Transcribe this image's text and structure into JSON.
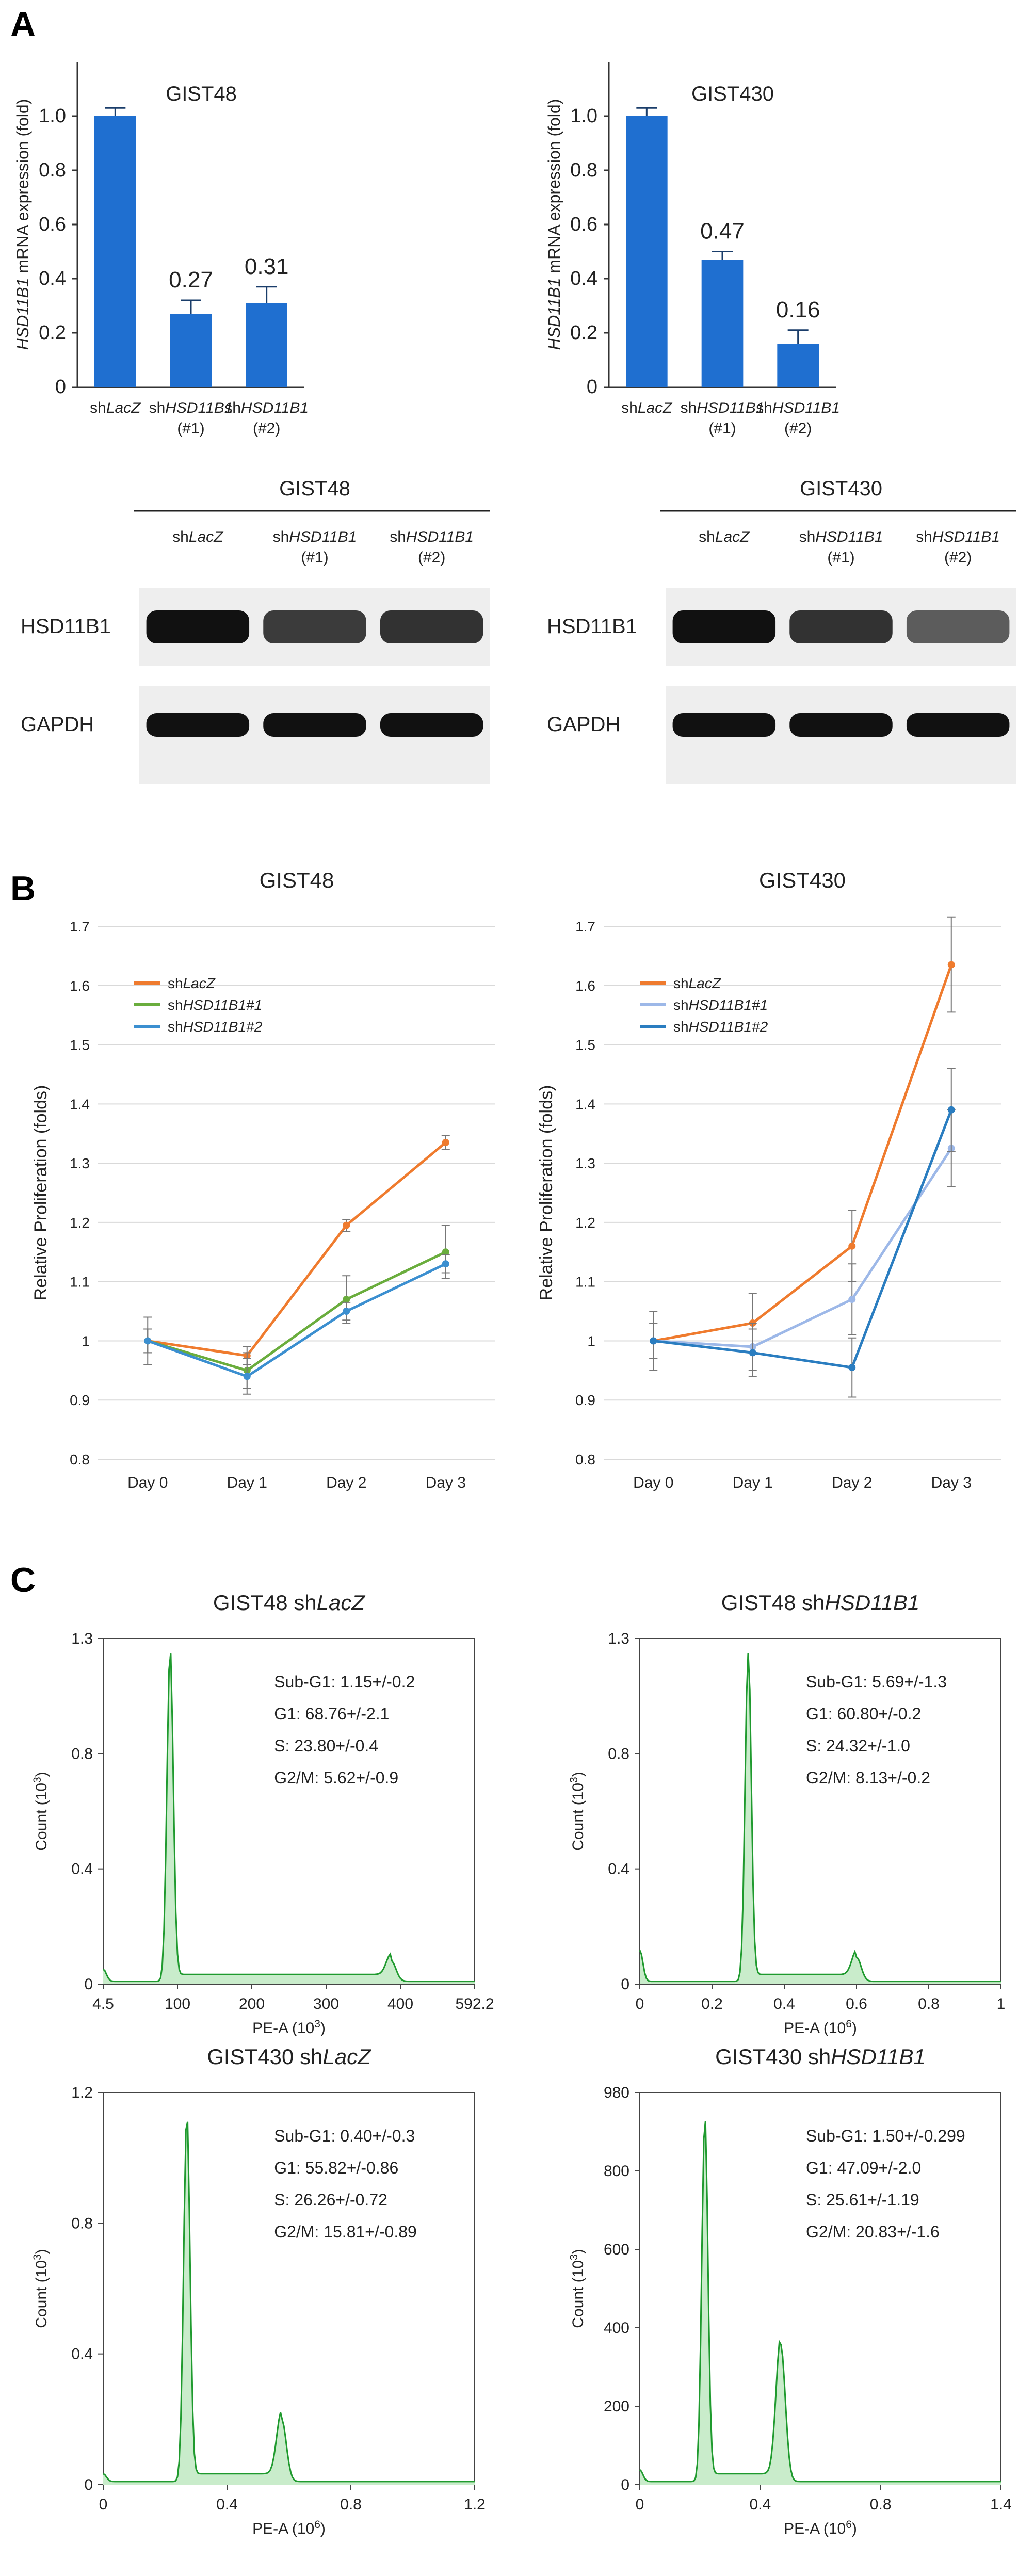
{
  "panels": {
    "A": "A",
    "B": "B",
    "C": "C"
  },
  "colors": {
    "bar": "#1f6fd0",
    "lacz": "#ef7b2e",
    "green": "#6aad3d",
    "blue": "#3b8fd0",
    "lightblue": "#9db8e8",
    "darkblue": "#2a7dc0",
    "flow": "#1f9a2e",
    "flowfill": "#c9eccb"
  },
  "bar_charts": [
    {
      "type": "bar",
      "title": "GIST48",
      "ylabel_gene": "HSD11B1",
      "ylabel_rest": " mRNA expression (fold)",
      "yticks": [
        "0",
        "0.2",
        "0.4",
        "0.6",
        "0.8",
        "1.0"
      ],
      "ylim": [
        0,
        1.2
      ],
      "categories": [
        [
          "sh",
          "LacZ",
          ""
        ],
        [
          "sh",
          "HSD11B1",
          "(#1)"
        ],
        [
          "sh",
          "HSD11B1",
          "(#2)"
        ]
      ],
      "values": [
        1.0,
        0.27,
        0.31
      ],
      "errors": [
        0.03,
        0.05,
        0.06
      ],
      "labels": [
        "",
        "0.27",
        "0.31"
      ]
    },
    {
      "type": "bar",
      "title": "GIST430",
      "ylabel_gene": "HSD11B1",
      "ylabel_rest": " mRNA expression (fold)",
      "yticks": [
        "0",
        "0.2",
        "0.4",
        "0.6",
        "0.8",
        "1.0"
      ],
      "ylim": [
        0,
        1.2
      ],
      "categories": [
        [
          "sh",
          "LacZ",
          ""
        ],
        [
          "sh",
          "HSD11B1",
          "(#1)"
        ],
        [
          "sh",
          "HSD11B1",
          "(#2)"
        ]
      ],
      "values": [
        1.0,
        0.47,
        0.16
      ],
      "errors": [
        0.03,
        0.03,
        0.05
      ],
      "labels": [
        "",
        "0.47",
        "0.16"
      ]
    }
  ],
  "blots": [
    {
      "title": "GIST48",
      "lanes": [
        [
          "sh",
          "LacZ",
          ""
        ],
        [
          "sh",
          "HSD11B1",
          "(#1)"
        ],
        [
          "sh",
          "HSD11B1",
          "(#2)"
        ]
      ],
      "rows": [
        "HSD11B1",
        "GAPDH"
      ],
      "band_intensity": [
        [
          1.0,
          0.75,
          0.8
        ],
        [
          1.0,
          1.0,
          1.0
        ]
      ]
    },
    {
      "title": "GIST430",
      "lanes": [
        [
          "sh",
          "LacZ",
          ""
        ],
        [
          "sh",
          "HSD11B1",
          "(#1)"
        ],
        [
          "sh",
          "HSD11B1",
          "(#2)"
        ]
      ],
      "rows": [
        "HSD11B1",
        "GAPDH"
      ],
      "band_intensity": [
        [
          1.0,
          0.8,
          0.55
        ],
        [
          1.0,
          1.0,
          1.0
        ]
      ]
    }
  ],
  "line_charts": [
    {
      "type": "line",
      "title": "GIST48",
      "ylabel": "Relative Proliferation (folds)",
      "x": [
        "Day 0",
        "Day 1",
        "Day 2",
        "Day 3"
      ],
      "yticks": [
        "0.8",
        "0.9",
        "1",
        "1.1",
        "1.2",
        "1.3",
        "1.4",
        "1.5",
        "1.6",
        "1.7"
      ],
      "ylim": [
        0.8,
        1.7
      ],
      "series": [
        {
          "name_pre": "sh",
          "name_it": "LacZ",
          "color": "#ef7b2e",
          "values": [
            1.0,
            0.975,
            1.195,
            1.335
          ],
          "errors": [
            0.04,
            0.015,
            0.01,
            0.012
          ]
        },
        {
          "name_pre": "sh",
          "name_it": "HSD11B1#1",
          "color": "#6aad3d",
          "values": [
            1.0,
            0.95,
            1.07,
            1.15
          ],
          "errors": [
            0.02,
            0.03,
            0.04,
            0.045
          ]
        },
        {
          "name_pre": "sh",
          "name_it": "HSD11B1#2",
          "color": "#3b8fd0",
          "values": [
            1.0,
            0.94,
            1.05,
            1.13
          ],
          "errors": [
            0.02,
            0.03,
            0.015,
            0.015
          ]
        }
      ]
    },
    {
      "type": "line",
      "title": "GIST430",
      "ylabel": "Relative Proliferation (folds)",
      "x": [
        "Day 0",
        "Day 1",
        "Day 2",
        "Day 3"
      ],
      "yticks": [
        "0.8",
        "0.9",
        "1",
        "1.1",
        "1.2",
        "1.3",
        "1.4",
        "1.5",
        "1.6",
        "1.7"
      ],
      "ylim": [
        0.8,
        1.7
      ],
      "series": [
        {
          "name_pre": "sh",
          "name_it": "LacZ",
          "color": "#ef7b2e",
          "values": [
            1.0,
            1.03,
            1.16,
            1.635
          ],
          "errors": [
            0.05,
            0.05,
            0.06,
            0.08
          ]
        },
        {
          "name_pre": "sh",
          "name_it": "HSD11B1#1",
          "color": "#9db8e8",
          "values": [
            1.0,
            0.99,
            1.07,
            1.325
          ],
          "errors": [
            0.03,
            0.04,
            0.06,
            0.065
          ]
        },
        {
          "name_pre": "sh",
          "name_it": "HSD11B1#2",
          "color": "#2a7dc0",
          "values": [
            1.0,
            0.98,
            0.955,
            1.39
          ],
          "errors": [
            0.03,
            0.04,
            0.05,
            0.07
          ]
        }
      ]
    }
  ],
  "flow_charts": [
    {
      "title_pre": "GIST48 sh",
      "title_it": "LacZ",
      "ylabel": "Count",
      "yunit_base": "(10",
      "yunit_exp": "3",
      "yunit_close": ")",
      "xlabel": "PE-A",
      "xunit_base": "(10",
      "xunit_exp": "3",
      "xunit_close": ")",
      "xticks": [
        "4.5",
        "100",
        "200",
        "300",
        "400",
        "592.2"
      ],
      "yticks": [
        "0",
        "0.4",
        "0.8",
        "1.3"
      ],
      "stats": [
        "Sub-G1: 1.15+/-0.2",
        "G1: 68.76+/-2.1",
        "S: 23.80+/-0.4",
        "G2/M: 5.62+/-0.9"
      ],
      "peaks": [
        [
          0.18,
          0.95
        ],
        [
          0.775,
          0.06
        ]
      ],
      "subg1": 0.035
    },
    {
      "title_pre": "GIST48 sh",
      "title_it": "HSD11B1",
      "ylabel": "Count",
      "yunit_base": "(10",
      "yunit_exp": "3",
      "yunit_close": ")",
      "xlabel": "PE-A",
      "xunit_base": "(10",
      "xunit_exp": "6",
      "xunit_close": ")",
      "xticks": [
        "0",
        "0.2",
        "0.4",
        "0.6",
        "0.8",
        "1"
      ],
      "yticks": [
        "0",
        "0.4",
        "0.8",
        "1.3"
      ],
      "stats": [
        "Sub-G1: 5.69+/-1.3",
        "G1: 60.80+/-0.2",
        "S: 24.32+/-1.0",
        "G2/M: 8.13+/-0.2"
      ],
      "peaks": [
        [
          0.3,
          0.95
        ],
        [
          0.6,
          0.07
        ]
      ],
      "subg1": 0.09
    },
    {
      "title_pre": "GIST430 sh",
      "title_it": "LacZ",
      "ylabel": "Count",
      "yunit_base": "(10",
      "yunit_exp": "3",
      "yunit_close": ")",
      "xlabel": "PE-A",
      "xunit_base": "(10",
      "xunit_exp": "6",
      "xunit_close": ")",
      "xticks": [
        "0",
        "0.4",
        "0.8",
        "1.2"
      ],
      "yticks": [
        "0",
        "0.4",
        "0.8",
        "1.2"
      ],
      "stats": [
        "Sub-G1: 0.40+/-0.3",
        "G1: 55.82+/-0.86",
        "S: 26.26+/-0.72",
        "G2/M: 15.81+/-0.89"
      ],
      "peaks": [
        [
          0.225,
          0.93
        ],
        [
          0.48,
          0.16
        ]
      ],
      "subg1": 0.02
    },
    {
      "title_pre": "GIST430 sh",
      "title_it": "HSD11B1",
      "ylabel": "Count",
      "yunit_base": "(10",
      "yunit_exp": "3",
      "yunit_close": ")",
      "xlabel": "PE-A",
      "xunit_base": "(10",
      "xunit_exp": "6",
      "xunit_close": ")",
      "xticks": [
        "0",
        "0.4",
        "0.8",
        "1.4"
      ],
      "yticks": [
        "0",
        "200",
        "400",
        "600",
        "800",
        "980"
      ],
      "stats": [
        "Sub-G1: 1.50+/-0.299",
        "G1: 47.09+/-2.0",
        "S: 25.61+/-1.19",
        "G2/M: 20.83+/-1.6"
      ],
      "peaks": [
        [
          0.18,
          0.92
        ],
        [
          0.39,
          0.35
        ]
      ],
      "subg1": 0.03
    }
  ]
}
